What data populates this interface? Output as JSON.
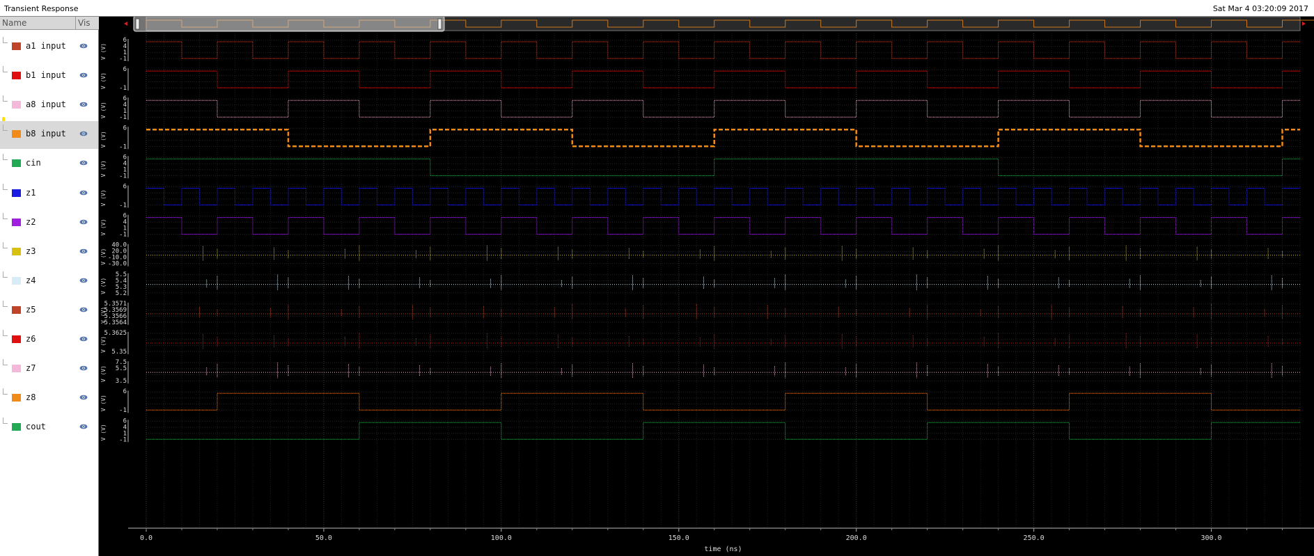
{
  "window": {
    "title": "Transient Response",
    "timestamp": "Sat Mar 4 03:20:09 2017"
  },
  "sidebar": {
    "col_name": "Name",
    "col_vis": "Vis"
  },
  "signals": [
    {
      "name": "a1 input",
      "color": "#c0442a",
      "type": "digital",
      "period": 20,
      "start_high": true,
      "ticks": [
        "6",
        "4",
        "1",
        "-1"
      ],
      "selected": false
    },
    {
      "name": "b1 input",
      "color": "#e01010",
      "type": "digital",
      "period": 40,
      "start_high": true,
      "ticks": [
        "6",
        "",
        "",
        "-1"
      ],
      "selected": false
    },
    {
      "name": "a8 input",
      "color": "#f4b8d8",
      "type": "digital",
      "period": 40,
      "start_high": true,
      "offset": 20,
      "ticks": [
        "6",
        "4",
        "1",
        "-1"
      ],
      "selected": false
    },
    {
      "name": "b8 input",
      "color": "#f08a18",
      "type": "digital",
      "period": 80,
      "start_high": true,
      "offset": 40,
      "thick": true,
      "ticks": [
        "6",
        "",
        "",
        "-1"
      ],
      "selected": true
    },
    {
      "name": "cin",
      "color": "#22aa55",
      "type": "digital",
      "period": 160,
      "start_high": true,
      "offset": 80,
      "ticks": [
        "6",
        "4",
        "1",
        "-1"
      ],
      "selected": false
    },
    {
      "name": "z1",
      "color": "#1a1ae0",
      "type": "digital",
      "period": 10,
      "start_high": true,
      "ticks": [
        "6",
        "",
        "",
        "-1"
      ],
      "selected": false
    },
    {
      "name": "z2",
      "color": "#a020e0",
      "type": "digital",
      "period": 20,
      "start_high": true,
      "offset": 10,
      "ticks": [
        "6",
        "4",
        "1",
        "-1"
      ],
      "selected": false
    },
    {
      "name": "z3",
      "color": "#d8c010",
      "type": "analog",
      "ticks": [
        "40.0",
        "20.0",
        "-10.0",
        "-30.0"
      ],
      "selected": false
    },
    {
      "name": "z4",
      "color": "#d8ecf8",
      "type": "analog",
      "ticks": [
        "5.5",
        "5.4",
        "5.3",
        "5.2"
      ],
      "selected": false
    },
    {
      "name": "z5",
      "color": "#c0442a",
      "type": "analog",
      "ticks": [
        "5.3571",
        "5.3569",
        "5.3566",
        "5.3564"
      ],
      "selected": false
    },
    {
      "name": "z6",
      "color": "#e01010",
      "type": "analog",
      "ticks": [
        "5.3625",
        "",
        "",
        "5.35"
      ],
      "selected": false
    },
    {
      "name": "z7",
      "color": "#f4b8d8",
      "type": "analog",
      "ticks": [
        "7.5",
        "5.5",
        "",
        "3.5"
      ],
      "selected": false
    },
    {
      "name": "z8",
      "color": "#f08a18",
      "type": "digital",
      "period": 80,
      "start_high": false,
      "offset": 20,
      "ticks": [
        "6",
        "",
        "",
        "-1"
      ],
      "selected": false
    },
    {
      "name": "cout",
      "color": "#22aa55",
      "type": "digital",
      "period": 80,
      "start_high": false,
      "offset": 60,
      "ticks": [
        "6",
        "4",
        "1",
        "-1"
      ],
      "selected": false
    }
  ],
  "axis": {
    "xlabel": "time (ns)",
    "ylabel": "V (V)",
    "ticks": [
      "0.0",
      "50.0",
      "100.0",
      "150.0",
      "200.0",
      "250.0",
      "300.0"
    ],
    "range": [
      0,
      325
    ]
  },
  "chart_data": {
    "type": "line",
    "title": "Transient Response",
    "xlabel": "time (ns)",
    "xlim": [
      0,
      325
    ],
    "series": [
      {
        "name": "a1 input",
        "kind": "square",
        "period_ns": 20,
        "low": -1,
        "high": 5
      },
      {
        "name": "b1 input",
        "kind": "square",
        "period_ns": 40,
        "low": -1,
        "high": 5
      },
      {
        "name": "a8 input",
        "kind": "square",
        "period_ns": 40,
        "low": -1,
        "high": 5
      },
      {
        "name": "b8 input",
        "kind": "square",
        "period_ns": 80,
        "low": -1,
        "high": 5
      },
      {
        "name": "cin",
        "kind": "square",
        "period_ns": 160,
        "low": -1,
        "high": 5
      },
      {
        "name": "z1",
        "kind": "square",
        "period_ns": 10,
        "low": -1,
        "high": 5
      },
      {
        "name": "z2",
        "kind": "square",
        "period_ns": 20,
        "low": -1,
        "high": 5
      },
      {
        "name": "z3",
        "kind": "glitches",
        "ylim": [
          -30,
          40
        ]
      },
      {
        "name": "z4",
        "kind": "glitches",
        "ylim": [
          5.2,
          5.5
        ]
      },
      {
        "name": "z5",
        "kind": "glitches",
        "ylim": [
          5.3564,
          5.3571
        ]
      },
      {
        "name": "z6",
        "kind": "glitches",
        "ylim": [
          5.35,
          5.3625
        ]
      },
      {
        "name": "z7",
        "kind": "glitches",
        "ylim": [
          3.5,
          7.5
        ]
      },
      {
        "name": "z8",
        "kind": "square",
        "period_ns": 80,
        "low": -1,
        "high": 5
      },
      {
        "name": "cout",
        "kind": "square",
        "period_ns": 80,
        "low": -1,
        "high": 5
      }
    ]
  }
}
